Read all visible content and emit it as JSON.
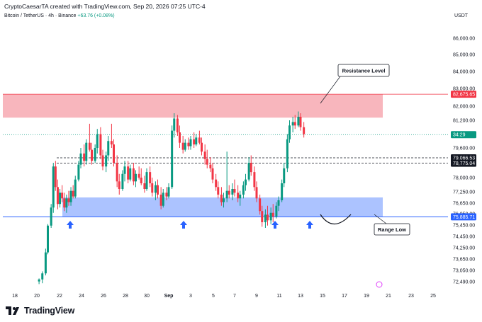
{
  "header": {
    "attribution": "CryptoCaesarTA created with TradingView.com, Sep 20, 2026 07:25 UTC-4",
    "symbol": "Bitcoin / TetherUS · 4h · Binance",
    "change": "+63.76 (+0.08%)",
    "currency": "USDT"
  },
  "footer": {
    "brand": "TradingView"
  },
  "colors": {
    "up": "#089981",
    "down": "#f23645",
    "resistance_fill": "#f7a9b1",
    "support_fill": "#9db9ff",
    "support_line": "#2962ff",
    "arrow": "#2962ff"
  },
  "chart_data": {
    "type": "candlestick",
    "ylim": [
      72000,
      87000
    ],
    "y_ticks": [
      "86,000.00",
      "85,000.00",
      "84,000.00",
      "83,000.00",
      "82,000.00",
      "81,200.00",
      "79,600.00",
      "78,000.00",
      "77,250.00",
      "76,650.00",
      "76,050.00",
      "75,450.00",
      "74,450.00",
      "74,250.00",
      "73,650.00",
      "73,050.00",
      "72,490.00"
    ],
    "x_ticks": [
      "18",
      "20",
      "22",
      "24",
      "26",
      "28",
      "30",
      "Sep",
      "3",
      "5",
      "7",
      "9",
      "11",
      "13",
      "15",
      "17",
      "19",
      "21",
      "23",
      "25"
    ],
    "resistance_zone": {
      "low": 81350,
      "high": 82676,
      "label": "Resistance Level"
    },
    "support_zone": {
      "low": 75886,
      "high": 76950,
      "label": "Range Low"
    },
    "price_tags": [
      {
        "value": 82675.65,
        "label": "82,675.65",
        "color": "#f23645"
      },
      {
        "value": 80370,
        "label": "34:29",
        "color": "#089981"
      },
      {
        "value": 79066.53,
        "label": "79,066.53",
        "color": "#131722"
      },
      {
        "value": 78775.04,
        "label": "78,775.04",
        "color": "#131722"
      },
      {
        "value": 75885.71,
        "label": "75,885.71",
        "color": "#2962ff"
      }
    ],
    "dashed_levels": [
      79066.53,
      78775.04
    ],
    "arrow_days": [
      22.5,
      27.8,
      31.8,
      37.4,
      39.4
    ],
    "candles_ohlc_by_day": [
      [
        20.2,
        72500,
        72650,
        72350,
        72600
      ],
      [
        20.5,
        72600,
        73000,
        72400,
        72900
      ],
      [
        20.8,
        72900,
        74200,
        72800,
        74000
      ],
      [
        21.0,
        74000,
        75500,
        73900,
        75400
      ],
      [
        21.3,
        75400,
        76600,
        75200,
        76400
      ],
      [
        21.5,
        76400,
        78800,
        76100,
        78600
      ],
      [
        21.7,
        78600,
        78900,
        77300,
        77500
      ],
      [
        21.9,
        77500,
        77900,
        76300,
        76600
      ],
      [
        22.1,
        76600,
        77400,
        76400,
        77200
      ],
      [
        22.3,
        77200,
        77600,
        76700,
        76900
      ],
      [
        22.5,
        76900,
        77200,
        76200,
        76400
      ],
      [
        22.7,
        76400,
        77100,
        76100,
        76900
      ],
      [
        22.9,
        76900,
        77300,
        76500,
        76700
      ],
      [
        23.1,
        76700,
        77500,
        76500,
        77300
      ],
      [
        23.3,
        77300,
        77600,
        76900,
        77000
      ],
      [
        23.5,
        77000,
        78100,
        76900,
        77900
      ],
      [
        23.8,
        77900,
        78900,
        77800,
        78700
      ],
      [
        24.0,
        78700,
        79600,
        78500,
        79300
      ],
      [
        24.3,
        79300,
        79800,
        78600,
        78900
      ],
      [
        24.5,
        78900,
        80100,
        78700,
        79900
      ],
      [
        24.8,
        79900,
        81000,
        79400,
        79500
      ],
      [
        25.0,
        79500,
        79900,
        78700,
        78900
      ],
      [
        25.3,
        78900,
        79800,
        78800,
        79600
      ],
      [
        25.5,
        79600,
        80700,
        79300,
        80400
      ],
      [
        25.8,
        80400,
        80800,
        79000,
        79200
      ],
      [
        26.0,
        79200,
        79500,
        78400,
        78600
      ],
      [
        26.3,
        78600,
        79400,
        78300,
        79200
      ],
      [
        26.5,
        79200,
        80300,
        78900,
        80000
      ],
      [
        26.8,
        80000,
        81000,
        79600,
        79800
      ],
      [
        27.0,
        79800,
        80100,
        78600,
        78800
      ],
      [
        27.3,
        78800,
        79200,
        77500,
        77800
      ],
      [
        27.5,
        77800,
        78200,
        77100,
        77400
      ],
      [
        27.8,
        77400,
        78400,
        77300,
        78200
      ],
      [
        28.0,
        78200,
        78900,
        77800,
        78600
      ],
      [
        28.3,
        78600,
        78900,
        77700,
        77900
      ],
      [
        28.5,
        77900,
        78700,
        77800,
        78500
      ],
      [
        28.8,
        78500,
        78800,
        77600,
        77800
      ],
      [
        29.0,
        77800,
        78400,
        77500,
        78200
      ],
      [
        29.3,
        78200,
        78600,
        77900,
        78000
      ],
      [
        29.5,
        78000,
        78500,
        77600,
        77700
      ],
      [
        29.8,
        77700,
        78100,
        77200,
        77400
      ],
      [
        30.0,
        77400,
        78500,
        77300,
        78300
      ],
      [
        30.3,
        78300,
        78600,
        77500,
        77700
      ],
      [
        30.5,
        77700,
        78000,
        77000,
        77200
      ],
      [
        30.8,
        77200,
        77800,
        76800,
        77600
      ],
      [
        31.0,
        77600,
        77900,
        76900,
        77100
      ],
      [
        31.3,
        77100,
        77500,
        76300,
        76500
      ],
      [
        31.5,
        76500,
        77400,
        76400,
        77200
      ],
      [
        31.8,
        77200,
        77500,
        76800,
        77000
      ],
      [
        32.0,
        77000,
        77700,
        76900,
        77500
      ],
      [
        32.3,
        77500,
        80900,
        77400,
        80600
      ],
      [
        32.5,
        80600,
        81600,
        80200,
        81300
      ],
      [
        32.8,
        81300,
        81500,
        80300,
        80500
      ],
      [
        33.0,
        80500,
        80900,
        79600,
        79900
      ],
      [
        33.3,
        79900,
        80300,
        79300,
        79500
      ],
      [
        33.5,
        79500,
        80100,
        79400,
        79900
      ],
      [
        33.8,
        79900,
        80200,
        79500,
        79700
      ],
      [
        34.0,
        79700,
        80300,
        79500,
        80100
      ],
      [
        34.3,
        80100,
        80500,
        79600,
        79800
      ],
      [
        34.5,
        79800,
        80400,
        79700,
        80200
      ],
      [
        34.8,
        80200,
        80600,
        79800,
        79900
      ],
      [
        35.0,
        79900,
        80200,
        79200,
        79400
      ],
      [
        35.3,
        79400,
        79800,
        78700,
        79000
      ],
      [
        35.5,
        79000,
        79500,
        78500,
        78700
      ],
      [
        35.8,
        78700,
        79100,
        78300,
        78500
      ],
      [
        36.0,
        78500,
        78800,
        77700,
        77900
      ],
      [
        36.3,
        77900,
        78200,
        77300,
        77500
      ],
      [
        36.5,
        77500,
        77800,
        76900,
        77100
      ],
      [
        36.8,
        77100,
        77500,
        76500,
        76700
      ],
      [
        37.0,
        76700,
        77200,
        76400,
        76900
      ],
      [
        37.3,
        76900,
        79400,
        76700,
        77300
      ],
      [
        37.5,
        77300,
        77600,
        76900,
        77100
      ],
      [
        37.8,
        77100,
        77700,
        76800,
        77400
      ],
      [
        38.0,
        77400,
        77900,
        77000,
        77200
      ],
      [
        38.3,
        77200,
        77600,
        76700,
        76900
      ],
      [
        38.5,
        76900,
        77300,
        76500,
        77100
      ],
      [
        38.8,
        77100,
        77800,
        76900,
        77600
      ],
      [
        39.0,
        77600,
        78200,
        77300,
        77900
      ],
      [
        39.3,
        77900,
        79100,
        77800,
        78800
      ],
      [
        39.5,
        78800,
        79200,
        78100,
        78300
      ],
      [
        39.8,
        78300,
        78600,
        77300,
        77500
      ],
      [
        40.0,
        77500,
        77800,
        76700,
        76900
      ],
      [
        40.3,
        76900,
        77100,
        76000,
        76200
      ],
      [
        40.5,
        76200,
        76500,
        75300,
        75600
      ],
      [
        40.8,
        75600,
        76300,
        75200,
        76000
      ],
      [
        41.0,
        76000,
        76500,
        75400,
        75700
      ],
      [
        41.3,
        75700,
        76400,
        75500,
        76100
      ],
      [
        41.5,
        76100,
        76600,
        75600,
        75900
      ],
      [
        41.8,
        75900,
        76700,
        75800,
        76500
      ],
      [
        42.0,
        76500,
        77000,
        76200,
        76800
      ],
      [
        42.3,
        76800,
        77900,
        76700,
        77700
      ],
      [
        42.5,
        77700,
        78800,
        77500,
        78500
      ],
      [
        42.8,
        78500,
        80400,
        78300,
        80100
      ],
      [
        43.0,
        80100,
        81200,
        79900,
        80900
      ],
      [
        43.3,
        80900,
        81400,
        80500,
        81100
      ],
      [
        43.5,
        81100,
        81500,
        80700,
        80900
      ],
      [
        43.8,
        80900,
        81700,
        80800,
        81400
      ],
      [
        44.0,
        81400,
        81600,
        80600,
        80800
      ],
      [
        44.3,
        80800,
        81100,
        80200,
        80400
      ]
    ]
  }
}
